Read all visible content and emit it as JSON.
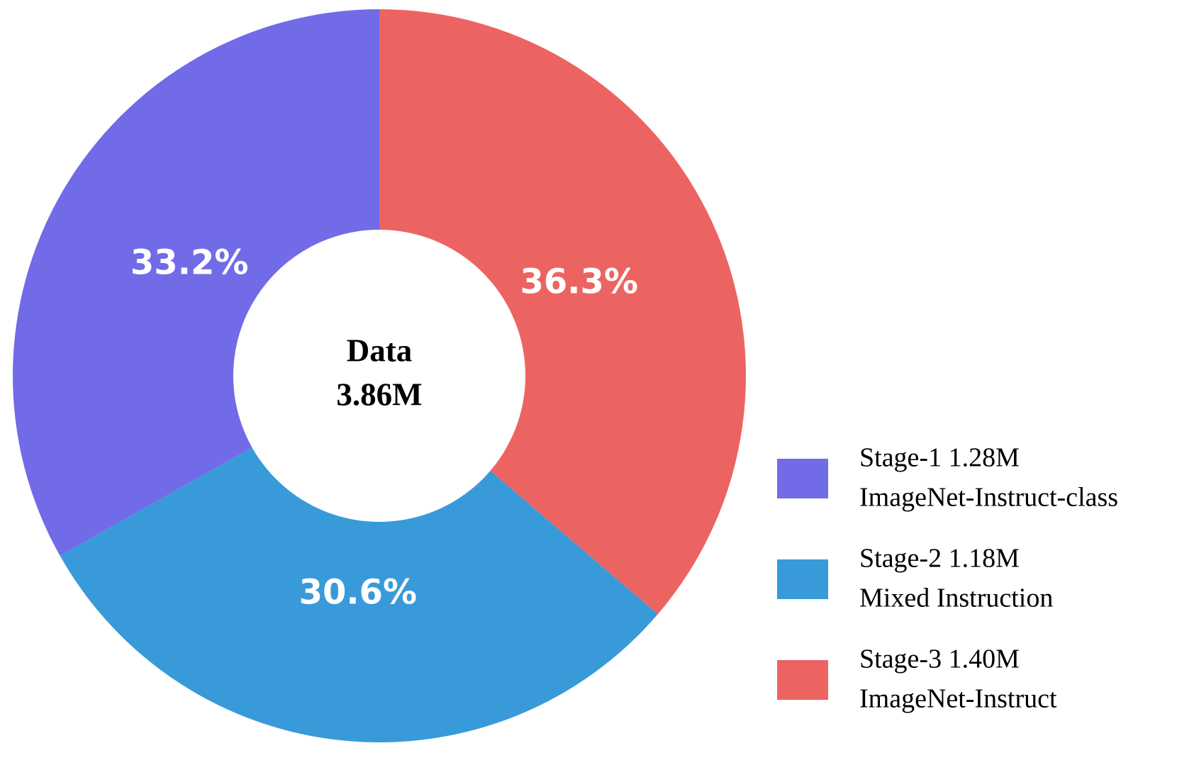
{
  "chart_data": {
    "type": "pie",
    "center_text": [
      "Data",
      "3.86M"
    ],
    "categories": [
      [
        "Stage-1 1.28M",
        "ImageNet-Instruct-class"
      ],
      [
        "Stage-2 1.18M",
        "Mixed Instruction"
      ],
      [
        "Stage-3 1.40M",
        "ImageNet-Instruct"
      ]
    ],
    "values": [
      33.2,
      30.6,
      36.3
    ],
    "value_labels": [
      "33.2%",
      "30.6%",
      "36.3%"
    ],
    "colors": [
      "#716be8",
      "#399ad9",
      "#ec6461"
    ],
    "legend": "lower right"
  }
}
